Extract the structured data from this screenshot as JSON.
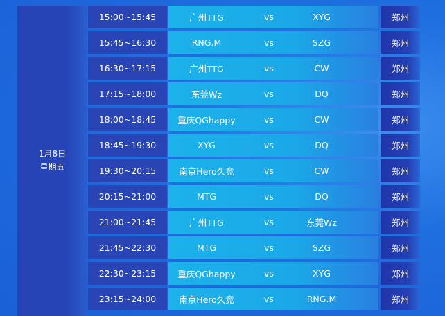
{
  "date": {
    "day": "1月8日",
    "weekday": "星期五"
  },
  "matches": [
    {
      "time": "15:00~15:45",
      "team1": "广州TTG",
      "vs": "vs",
      "team2": "XYG",
      "city": "郑州"
    },
    {
      "time": "15:45~16:30",
      "team1": "RNG.M",
      "vs": "vs",
      "team2": "SZG",
      "city": "郑州"
    },
    {
      "time": "16:30~17:15",
      "team1": "广州TTG",
      "vs": "vs",
      "team2": "CW",
      "city": "郑州"
    },
    {
      "time": "17:15~18:00",
      "team1": "东莞Wz",
      "vs": "vs",
      "team2": "DQ",
      "city": "郑州"
    },
    {
      "time": "18:00~18:45",
      "team1": "重庆QGhappy",
      "vs": "vs",
      "team2": "CW",
      "city": "郑州"
    },
    {
      "time": "18:45~19:30",
      "team1": "XYG",
      "vs": "vs",
      "team2": "DQ",
      "city": "郑州"
    },
    {
      "time": "19:30~20:15",
      "team1": "南京Hero久竞",
      "vs": "vs",
      "team2": "CW",
      "city": "郑州"
    },
    {
      "time": "20:15~21:00",
      "team1": "MTG",
      "vs": "vs",
      "team2": "DQ",
      "city": "郑州"
    },
    {
      "time": "21:00~21:45",
      "team1": "广州TTG",
      "vs": "vs",
      "team2": "东莞Wz",
      "city": "郑州"
    },
    {
      "time": "21:45~22:30",
      "team1": "MTG",
      "vs": "vs",
      "team2": "SZG",
      "city": "郑州"
    },
    {
      "time": "22:30~23:15",
      "team1": "重庆QGhappy",
      "vs": "vs",
      "team2": "XYG",
      "city": "郑州"
    },
    {
      "time": "23:15~24:00",
      "team1": "南京Hero久竞",
      "vs": "vs",
      "team2": "RNG.M",
      "city": "郑州"
    }
  ]
}
